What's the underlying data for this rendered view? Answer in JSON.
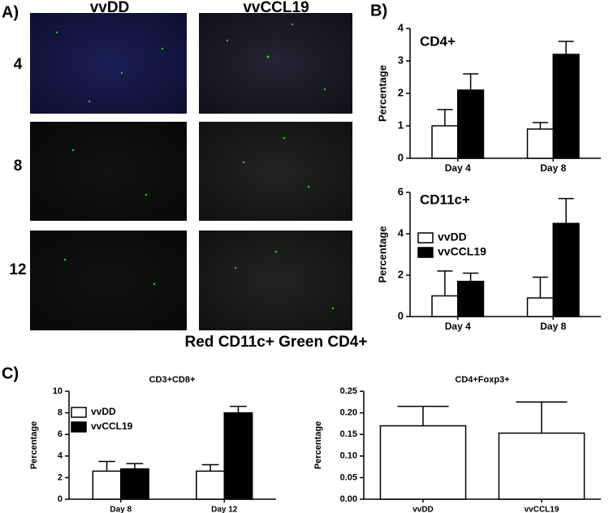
{
  "panels": {
    "a": {
      "label": "A)",
      "columns": [
        "vvDD",
        "vvCCL19"
      ],
      "rows": [
        "4",
        "8",
        "12"
      ],
      "caption": "Red CD11c+ Green CD4+"
    },
    "b": {
      "label": "B)"
    },
    "c": {
      "label": "C)"
    }
  },
  "chart_data": [
    {
      "type": "bar",
      "title": "CD4+",
      "y_label": "Percentage",
      "categories": [
        "Day 4",
        "Day 8"
      ],
      "series": [
        {
          "color": "#ffffff",
          "values": [
            1.0,
            0.9
          ],
          "errors": [
            0.5,
            0.2
          ]
        },
        {
          "color": "#000000",
          "values": [
            2.1,
            3.2
          ],
          "errors": [
            0.5,
            0.4
          ]
        }
      ],
      "ylim": [
        0,
        4
      ],
      "yticks": [
        0,
        1,
        2,
        3,
        4
      ]
    },
    {
      "type": "bar",
      "title": "CD11c+",
      "y_label": "Percentage",
      "categories": [
        "Day 4",
        "Day 8"
      ],
      "series": [
        {
          "name": "vvDD",
          "color": "#ffffff",
          "values": [
            1.0,
            0.9
          ],
          "errors": [
            1.2,
            1.0
          ]
        },
        {
          "name": "vvCCL19",
          "color": "#000000",
          "values": [
            1.7,
            4.5
          ],
          "errors": [
            0.4,
            1.2
          ]
        }
      ],
      "ylim": [
        0,
        6
      ],
      "yticks": [
        0,
        2,
        4,
        6
      ],
      "legend": "upper left"
    },
    {
      "type": "bar",
      "title": "CD3+CD8+",
      "y_label": "Percentage",
      "categories": [
        "Day 8",
        "Day 12"
      ],
      "series": [
        {
          "name": "vvDD",
          "color": "#ffffff",
          "values": [
            2.6,
            2.6
          ],
          "errors": [
            0.9,
            0.6
          ]
        },
        {
          "name": "vvCCL19",
          "color": "#000000",
          "values": [
            2.8,
            8.0
          ],
          "errors": [
            0.5,
            0.6
          ]
        }
      ],
      "ylim": [
        0,
        10
      ],
      "yticks": [
        0,
        2,
        4,
        6,
        8,
        10
      ],
      "legend": "upper left"
    },
    {
      "type": "bar",
      "title": "CD4+Foxp3+",
      "y_label": "Percentage",
      "categories": [
        "vvDD",
        "vvCCL19"
      ],
      "series": [
        {
          "color": "#ffffff",
          "values": [
            0.17,
            0.153
          ],
          "errors": [
            0.045,
            0.072
          ]
        }
      ],
      "ylim": [
        0,
        0.25
      ],
      "yticks": [
        {
          "value": 0,
          "label": "0.00"
        },
        {
          "value": 0.05,
          "label": "0.05"
        },
        {
          "value": 0.1,
          "label": "0.10"
        },
        {
          "value": 0.15,
          "label": "0.15"
        },
        {
          "value": 0.2,
          "label": "0.20"
        },
        {
          "value": 0.25,
          "label": "0.25"
        }
      ]
    }
  ]
}
